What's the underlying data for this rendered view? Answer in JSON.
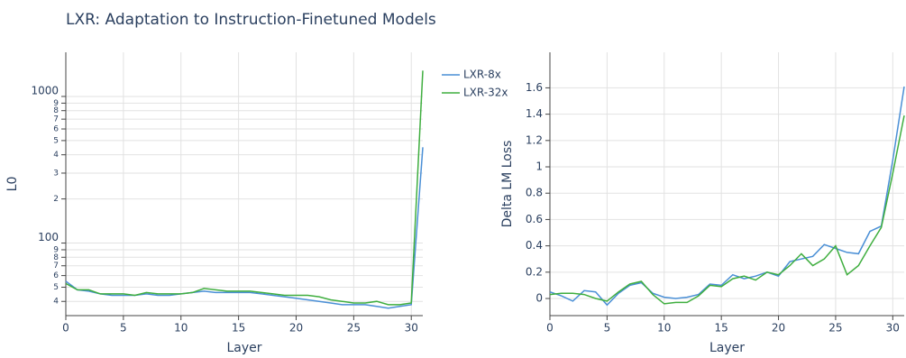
{
  "title": "LXR: Adaptation to Instruction-Finetuned Models",
  "chart_data": [
    {
      "type": "line",
      "x_label": "Layer",
      "y_label": "L0",
      "log_y": true,
      "grid": true,
      "legend": "outside-right",
      "x": [
        0,
        1,
        2,
        3,
        4,
        5,
        6,
        7,
        8,
        9,
        10,
        11,
        12,
        13,
        14,
        15,
        16,
        17,
        18,
        19,
        20,
        21,
        22,
        23,
        24,
        25,
        26,
        27,
        28,
        29,
        30,
        31
      ],
      "xlim": [
        0,
        31
      ],
      "xticks": [
        0,
        5,
        10,
        15,
        20,
        25,
        30
      ],
      "ylim": [
        32,
        2000
      ],
      "yticks": [
        {
          "value": 40,
          "label": "4"
        },
        {
          "value": 50,
          "label": "5"
        },
        {
          "value": 60,
          "label": "6"
        },
        {
          "value": 70,
          "label": "7"
        },
        {
          "value": 80,
          "label": "8"
        },
        {
          "value": 90,
          "label": "9"
        },
        100,
        {
          "value": 200,
          "label": "2"
        },
        {
          "value": 300,
          "label": "3"
        },
        {
          "value": 400,
          "label": "4"
        },
        {
          "value": 500,
          "label": "5"
        },
        {
          "value": 600,
          "label": "6"
        },
        {
          "value": 700,
          "label": "7"
        },
        {
          "value": 800,
          "label": "8"
        },
        {
          "value": 900,
          "label": "9"
        },
        1000
      ],
      "series": [
        {
          "name": "LXR-8x",
          "color": "#4a8fd6",
          "values": [
            55,
            48,
            47,
            45,
            44,
            44,
            44,
            45,
            44,
            44,
            45,
            46,
            47,
            46,
            46,
            46,
            46,
            45,
            44,
            43,
            42,
            41,
            40,
            39,
            38,
            38,
            38,
            37,
            36,
            37,
            38,
            450
          ]
        },
        {
          "name": "LXR-32x",
          "color": "#3fae3f",
          "values": [
            53,
            48,
            48,
            45,
            45,
            45,
            44,
            46,
            45,
            45,
            45,
            46,
            49,
            48,
            47,
            47,
            47,
            46,
            45,
            44,
            44,
            44,
            43,
            41,
            40,
            39,
            39,
            40,
            38,
            38,
            39,
            1500
          ]
        }
      ]
    },
    {
      "type": "line",
      "x_label": "Layer",
      "y_label": "Delta LM Loss",
      "log_y": false,
      "grid": true,
      "x": [
        0,
        1,
        2,
        3,
        4,
        5,
        6,
        7,
        8,
        9,
        10,
        11,
        12,
        13,
        14,
        15,
        16,
        17,
        18,
        19,
        20,
        21,
        22,
        23,
        24,
        25,
        26,
        27,
        28,
        29,
        30,
        31
      ],
      "xlim": [
        0,
        31
      ],
      "xticks": [
        0,
        5,
        10,
        15,
        20,
        25,
        30
      ],
      "ylim": [
        -0.13,
        1.87
      ],
      "yticks": [
        0,
        0.2,
        0.4,
        0.6,
        0.8,
        1,
        1.2,
        1.4,
        1.6
      ],
      "series": [
        {
          "color": "#4a8fd6",
          "values": [
            0.05,
            0.02,
            -0.02,
            0.06,
            0.05,
            -0.05,
            0.04,
            0.1,
            0.12,
            0.04,
            0.01,
            0,
            0.01,
            0.03,
            0.11,
            0.1,
            0.18,
            0.15,
            0.17,
            0.2,
            0.17,
            0.28,
            0.3,
            0.32,
            0.41,
            0.38,
            0.35,
            0.34,
            0.51,
            0.55,
            1.05,
            1.61
          ]
        },
        {
          "color": "#3fae3f",
          "values": [
            0.03,
            0.04,
            0.04,
            0.03,
            0,
            -0.02,
            0.05,
            0.11,
            0.13,
            0.03,
            -0.04,
            -0.03,
            -0.03,
            0.02,
            0.1,
            0.09,
            0.15,
            0.17,
            0.14,
            0.2,
            0.18,
            0.25,
            0.34,
            0.25,
            0.3,
            0.4,
            0.18,
            0.25,
            0.4,
            0.54,
            0.95,
            1.39
          ]
        }
      ]
    }
  ]
}
